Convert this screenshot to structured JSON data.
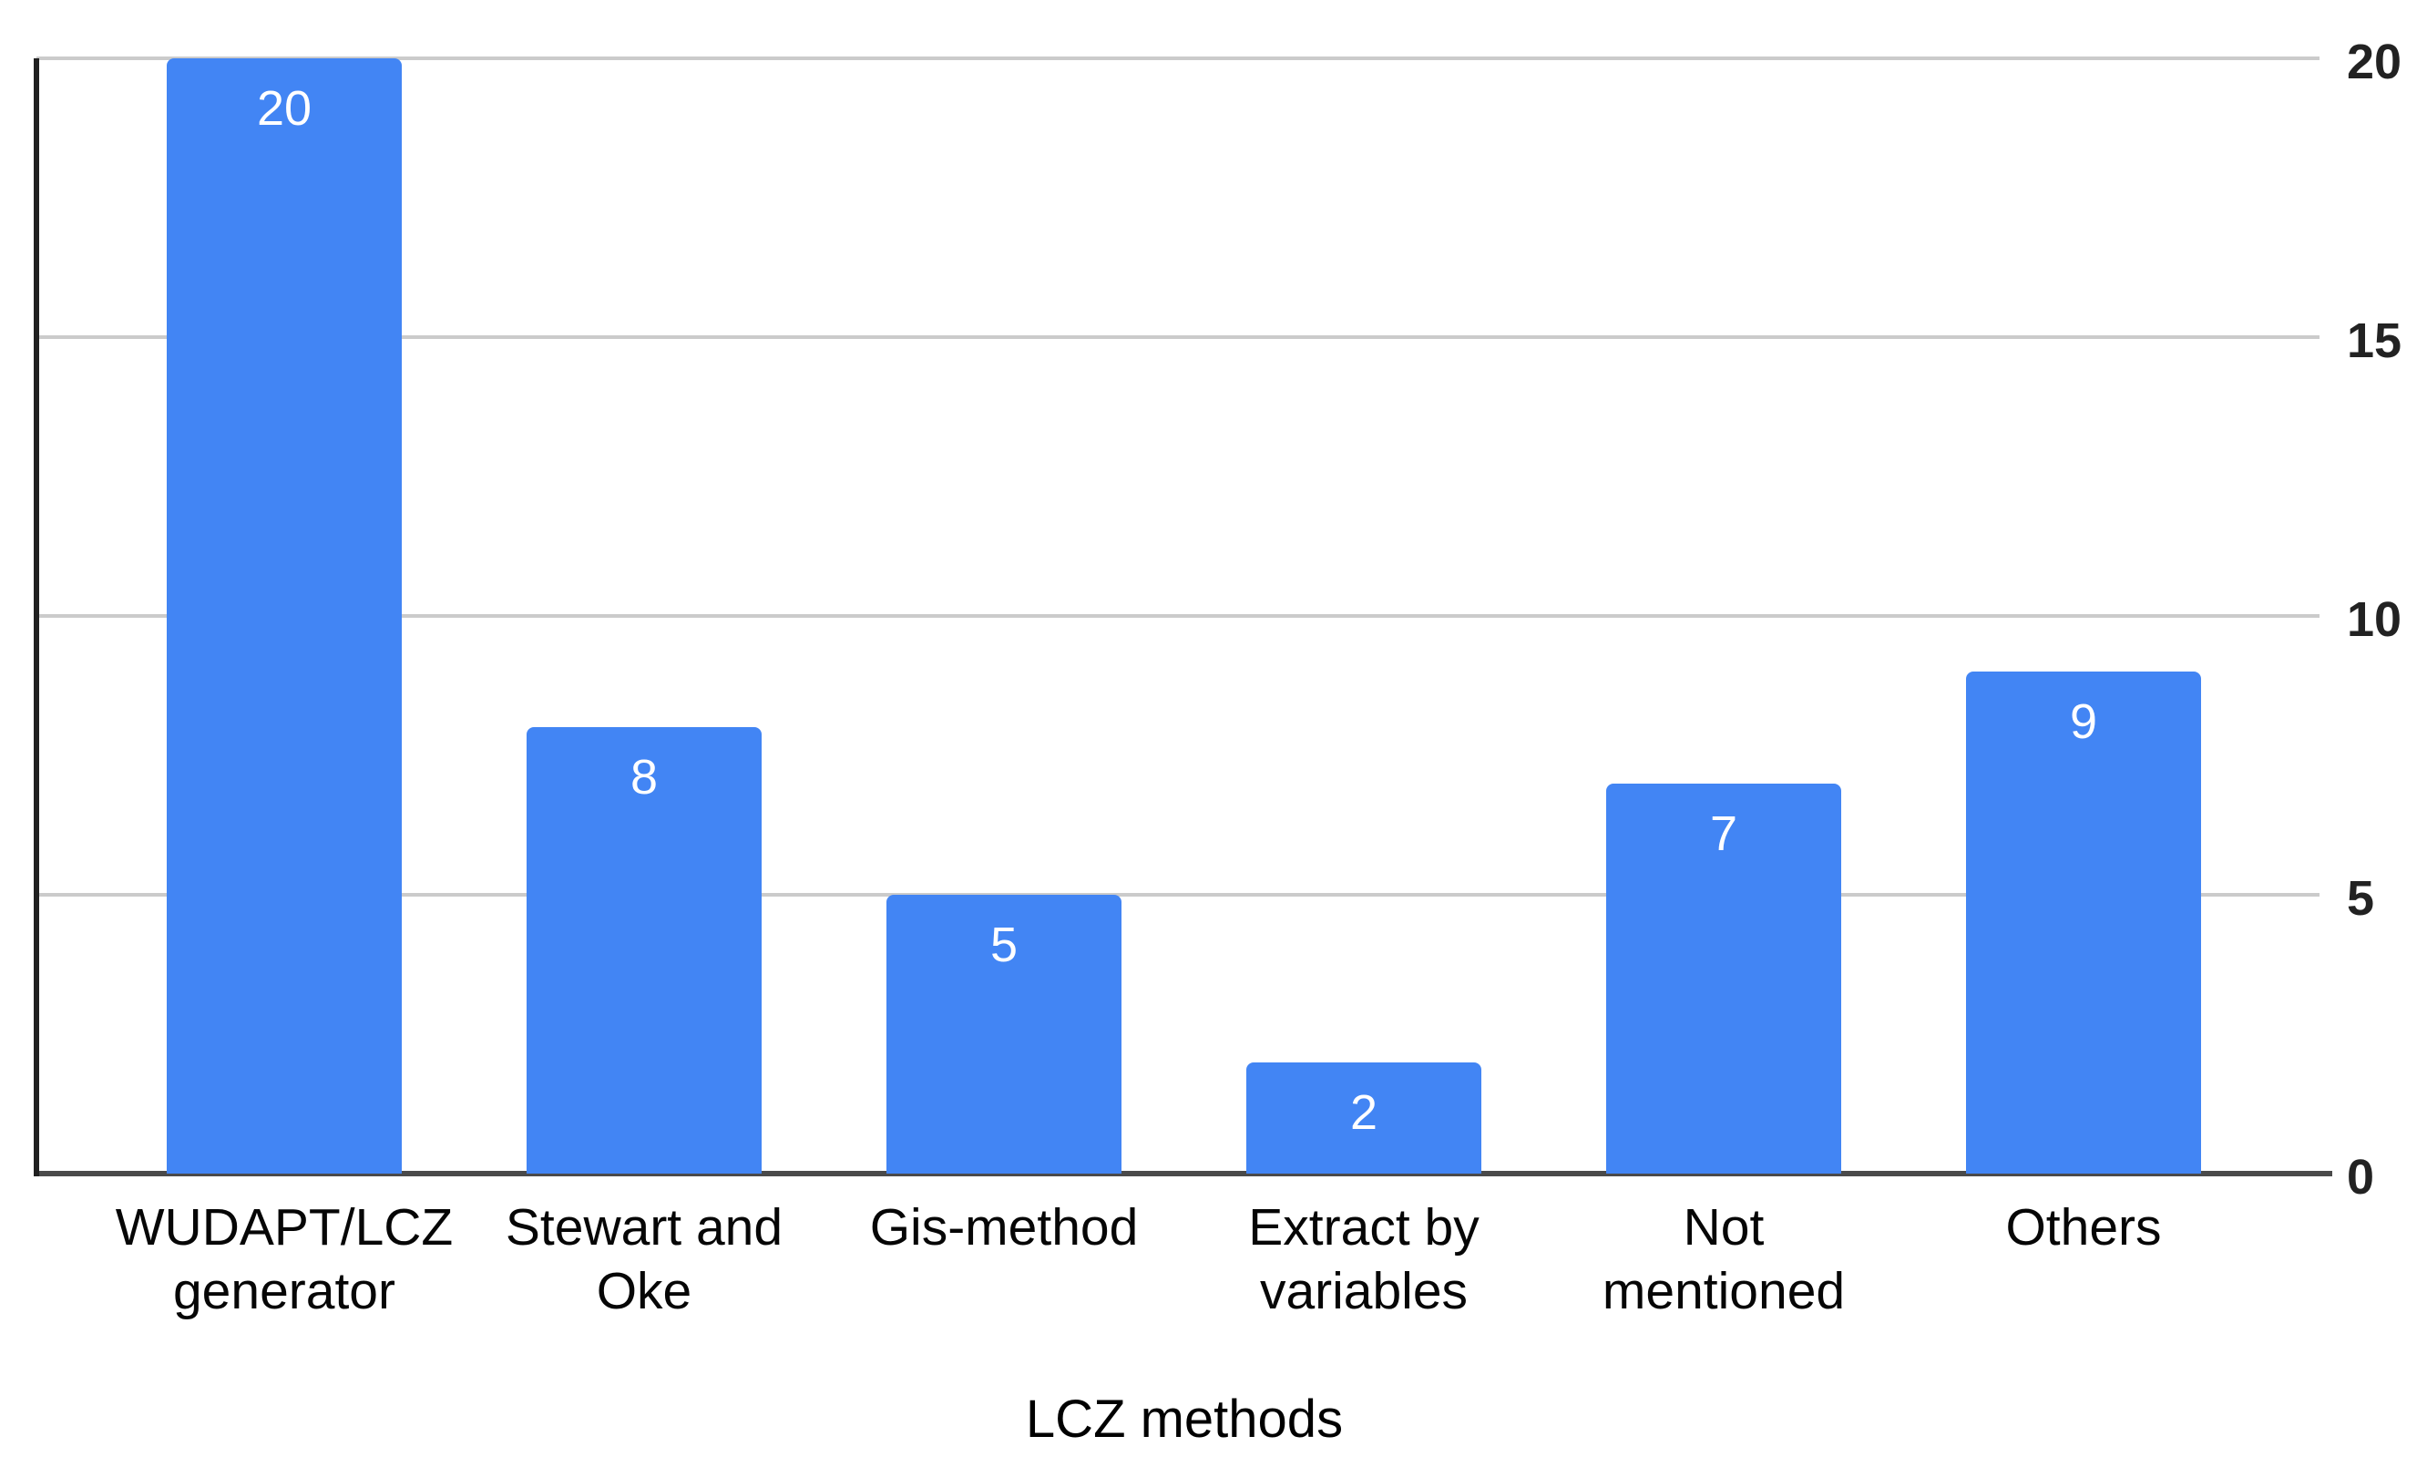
{
  "chart_data": {
    "type": "bar",
    "title": "",
    "xlabel": "LCZ methods",
    "ylabel": "",
    "categories": [
      "WUDAPT/LCZ generator",
      "Stewart and Oke",
      "Gis-method",
      "Extract by variables",
      "Not mentioned",
      "Others"
    ],
    "categories_wrapped": [
      "WUDAPT/LCZ\ngenerator",
      "Stewart and\nOke",
      "Gis-method",
      "Extract by\nvariables",
      "Not\nmentioned",
      "Others"
    ],
    "values": [
      20,
      8,
      5,
      2,
      7,
      9
    ],
    "value_labels": [
      "20",
      "8",
      "5",
      "2",
      "7",
      "9"
    ],
    "ylim": [
      0,
      20
    ],
    "yticks": [
      0,
      5,
      10,
      15,
      20
    ],
    "grid": true,
    "legend": "none",
    "y_axis_side": "right",
    "colors": {
      "bar": "#4285f4",
      "bar_value_text": "#ffffff",
      "gridline": "#cbcbcb",
      "baseline": "#4a4a4a",
      "y_axis_line": "#202020",
      "tick_text": "#222222",
      "category_text": "#060606",
      "title_text": "#000000"
    }
  }
}
